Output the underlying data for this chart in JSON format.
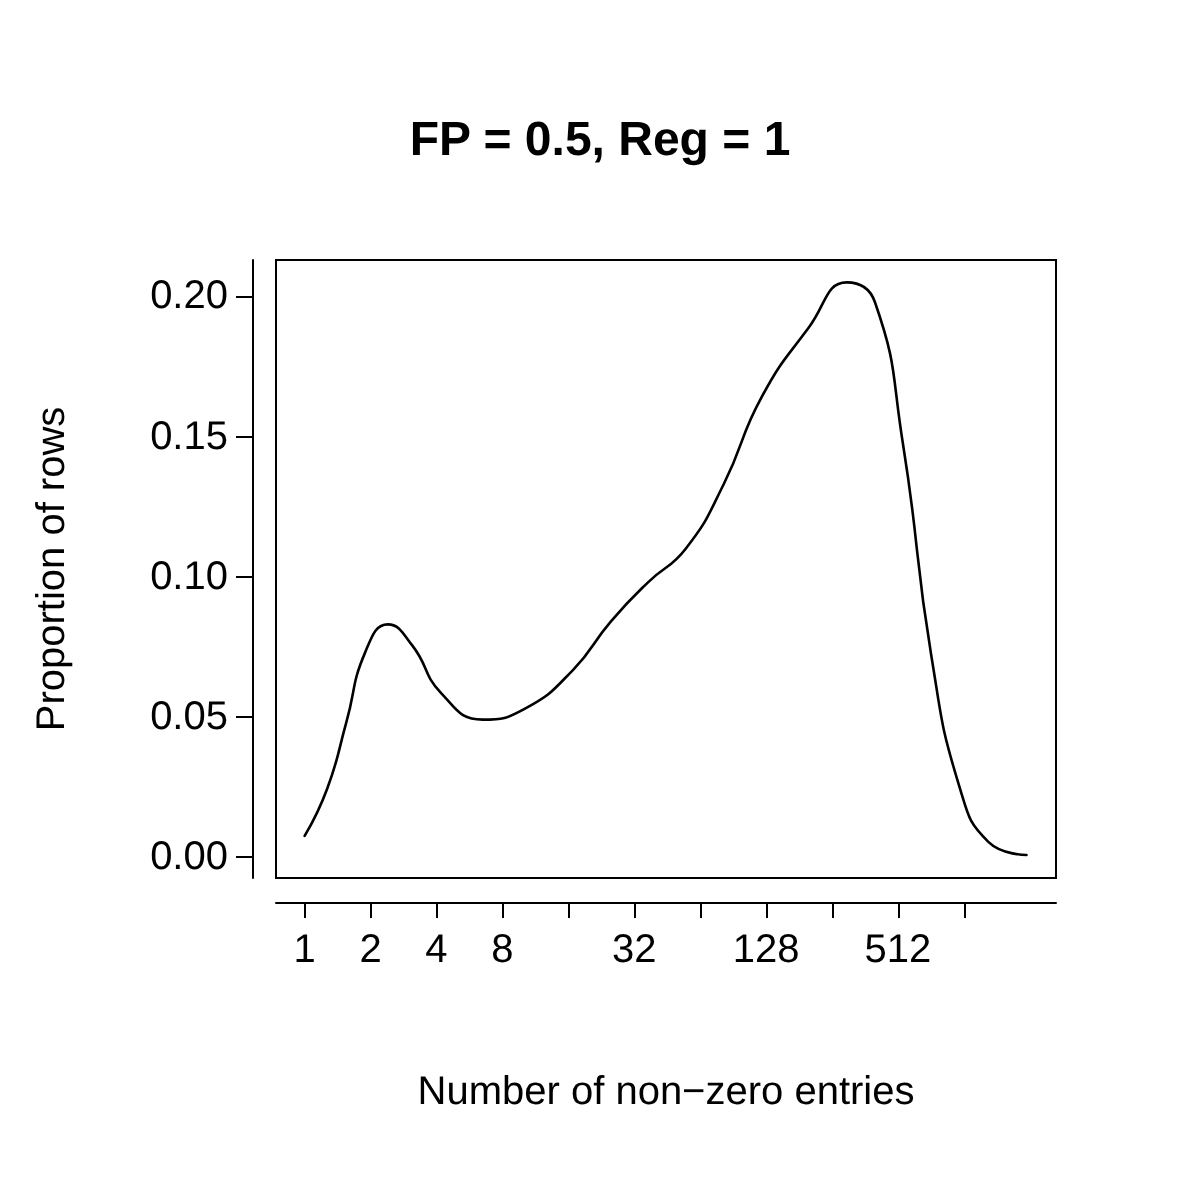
{
  "chart_data": {
    "type": "line",
    "title": "FP = 0.5, Reg = 1",
    "xlabel": "Number of non−zero entries",
    "ylabel": "Proportion of rows",
    "log": "x",
    "grid": false,
    "marker": "none",
    "line_style": "solid",
    "x": [
      1,
      1.27,
      1.55,
      1.89,
      2.4,
      3.1,
      4.2,
      6.5,
      10.2,
      16.8,
      25,
      37,
      55,
      82,
      122,
      201,
      299,
      402,
      541,
      727,
      983,
      1325,
      1980
    ],
    "series": [
      {
        "color": "#000000",
        "values": [
          0.0075,
          0.0245,
          0.048,
          0.073,
          0.083,
          0.0755,
          0.0585,
          0.049,
          0.053,
          0.0667,
          0.084,
          0.098,
          0.11,
          0.133,
          0.164,
          0.189,
          0.205,
          0.198,
          0.147,
          0.072,
          0.0245,
          0.0054,
          0.0007
        ]
      }
    ],
    "xlim": [
      0.74,
      2700
    ],
    "xticks": [
      1,
      2,
      4,
      8,
      {
        "value": 16,
        "label": null
      },
      32,
      {
        "value": 64,
        "label": null
      },
      128,
      {
        "value": 256,
        "label": null
      },
      512,
      {
        "value": 1024,
        "label": null
      }
    ],
    "ylim": [
      -0.0075,
      0.213
    ],
    "yticks": [
      {
        "value": 0,
        "label": "0.00"
      },
      {
        "value": 0.05,
        "label": "0.05"
      },
      {
        "value": 0.1,
        "label": "0.10"
      },
      {
        "value": 0.15,
        "label": "0.15"
      },
      {
        "value": 0.2,
        "label": "0.20"
      }
    ]
  }
}
